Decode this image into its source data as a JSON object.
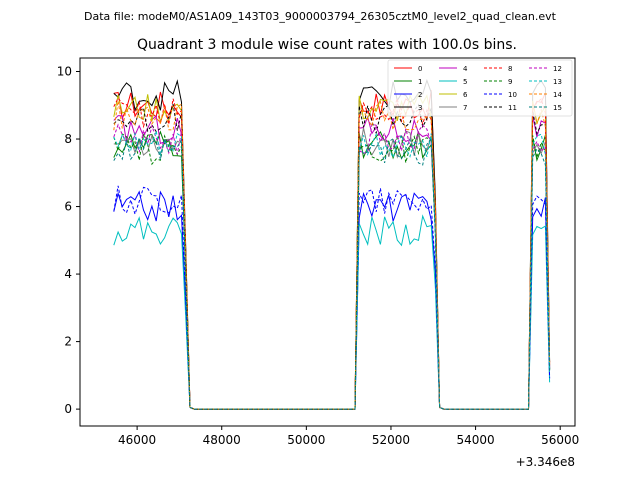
{
  "figure": {
    "suptitle": "Data file: modeM0/AS1A09_143T03_9000003794_26305cztM0_level2_quad_clean.evt",
    "title": "Quadrant 3 module wise count rates with 100.0s bins.",
    "offset_label": "+3.346e8"
  },
  "chart_data": {
    "type": "line",
    "title": "Quadrant 3 module wise count rates with 100.0s bins.",
    "xlabel": "",
    "ylabel": "",
    "x_offset": 334600000,
    "xlim": [
      44650,
      56350
    ],
    "ylim": [
      -0.5,
      10.4
    ],
    "xticks": [
      46000,
      48000,
      50000,
      52000,
      54000,
      56000
    ],
    "xtick_labels": [
      "46000",
      "48000",
      "50000",
      "52000",
      "54000",
      "56000"
    ],
    "yticks": [
      0,
      2,
      4,
      6,
      8,
      10
    ],
    "ytick_labels": [
      "0",
      "2",
      "4",
      "6",
      "8",
      "10"
    ],
    "grid": false,
    "legend_position": "top-right",
    "segments": [
      {
        "x_start": 45450,
        "x_end": 47250,
        "on_end": 47050
      },
      {
        "x_start": 51250,
        "x_end": 53150,
        "on_end": 53000
      },
      {
        "x_start": 55300,
        "x_end": 55800,
        "on_end": 55800
      }
    ],
    "series": [
      {
        "name": "0",
        "color": "#ff0000",
        "dash": false,
        "level": 9.0
      },
      {
        "name": "1",
        "color": "#008000",
        "dash": false,
        "level": 7.8
      },
      {
        "name": "2",
        "color": "#0000ff",
        "dash": false,
        "level": 6.0
      },
      {
        "name": "3",
        "color": "#000000",
        "dash": false,
        "level": 9.3
      },
      {
        "name": "4",
        "color": "#bf00bf",
        "dash": false,
        "level": 8.3
      },
      {
        "name": "5",
        "color": "#00bfbf",
        "dash": false,
        "level": 5.3
      },
      {
        "name": "6",
        "color": "#bfbf00",
        "dash": false,
        "level": 8.9
      },
      {
        "name": "7",
        "color": "#808080",
        "dash": false,
        "level": 7.9
      },
      {
        "name": "8",
        "color": "#ff0000",
        "dash": true,
        "level": 8.8
      },
      {
        "name": "9",
        "color": "#008000",
        "dash": true,
        "level": 7.7
      },
      {
        "name": "10",
        "color": "#0000ff",
        "dash": true,
        "level": 6.2
      },
      {
        "name": "11",
        "color": "#000000",
        "dash": true,
        "level": 8.6
      },
      {
        "name": "12",
        "color": "#bf00bf",
        "dash": true,
        "level": 8.0
      },
      {
        "name": "13",
        "color": "#00bfbf",
        "dash": true,
        "level": 7.8
      },
      {
        "name": "14",
        "color": "#ff8000",
        "dash": true,
        "level": 8.7
      },
      {
        "name": "15",
        "color": "#008080",
        "dash": true,
        "level": 7.6
      }
    ]
  }
}
